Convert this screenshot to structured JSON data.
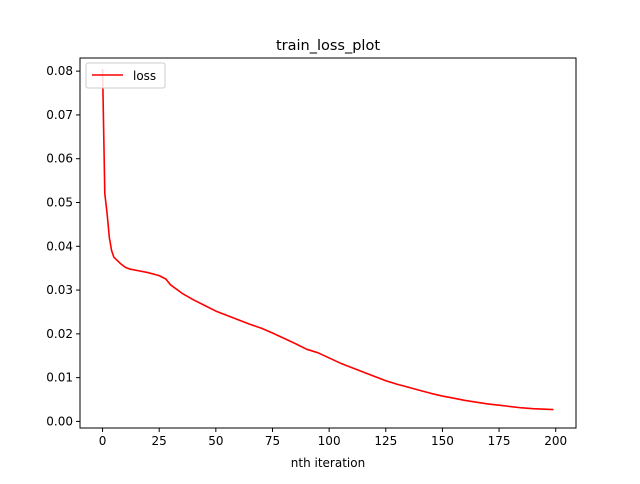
{
  "chart_data": {
    "type": "line",
    "title": "train_loss_plot",
    "xlabel": "nth iteration",
    "ylabel": "",
    "xlim": [
      -9.95,
      208.95
    ],
    "ylim": [
      -0.0015,
      0.083
    ],
    "xticks": [
      0,
      25,
      50,
      75,
      100,
      125,
      150,
      175,
      200
    ],
    "xtick_labels": [
      "0",
      "25",
      "50",
      "75",
      "100",
      "125",
      "150",
      "175",
      "200"
    ],
    "yticks": [
      0.0,
      0.01,
      0.02,
      0.03,
      0.04,
      0.05,
      0.06,
      0.07,
      0.08
    ],
    "ytick_labels": [
      "0.00",
      "0.01",
      "0.02",
      "0.03",
      "0.04",
      "0.05",
      "0.06",
      "0.07",
      "0.08"
    ],
    "grid": false,
    "legend_position": "upper-left",
    "series": [
      {
        "name": "loss",
        "color": "#ff0000",
        "x": [
          0,
          1,
          2,
          3,
          4,
          5,
          6,
          7,
          8,
          10,
          12,
          15,
          20,
          25,
          28,
          30,
          35,
          40,
          45,
          50,
          55,
          60,
          65,
          70,
          75,
          80,
          85,
          90,
          95,
          100,
          105,
          110,
          115,
          120,
          125,
          130,
          135,
          140,
          145,
          150,
          155,
          160,
          165,
          170,
          175,
          180,
          185,
          190,
          195,
          199
        ],
        "y": [
          0.0805,
          0.052,
          0.0475,
          0.042,
          0.039,
          0.0375,
          0.037,
          0.0365,
          0.036,
          0.0352,
          0.0348,
          0.0345,
          0.034,
          0.0333,
          0.0325,
          0.0312,
          0.0293,
          0.0278,
          0.0265,
          0.0252,
          0.0242,
          0.0232,
          0.0222,
          0.0213,
          0.0202,
          0.019,
          0.0178,
          0.0165,
          0.0157,
          0.0145,
          0.0133,
          0.0123,
          0.0113,
          0.0103,
          0.0093,
          0.0085,
          0.0078,
          0.0071,
          0.0064,
          0.0058,
          0.0053,
          0.0048,
          0.0044,
          0.004,
          0.0037,
          0.0034,
          0.0031,
          0.0029,
          0.0028,
          0.0027
        ]
      }
    ]
  }
}
